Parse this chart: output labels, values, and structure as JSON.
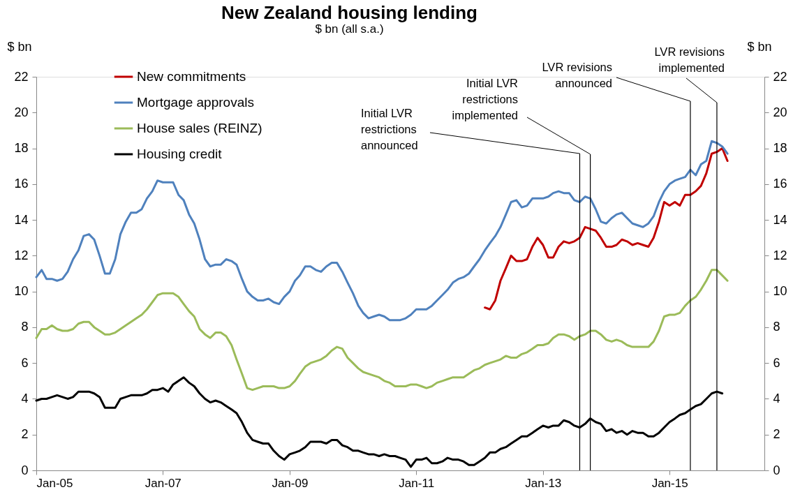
{
  "chart_data": {
    "type": "line",
    "title": "New Zealand housing lending",
    "subtitle": "$ bn (all s.a.)",
    "ylabel": "$ bn",
    "y2label": "$ bn",
    "x": [
      "2005-01",
      "2005-02",
      "2005-03",
      "2005-04",
      "2005-05",
      "2005-06",
      "2005-07",
      "2005-08",
      "2005-09",
      "2005-10",
      "2005-11",
      "2005-12",
      "2006-01",
      "2006-02",
      "2006-03",
      "2006-04",
      "2006-05",
      "2006-06",
      "2006-07",
      "2006-08",
      "2006-09",
      "2006-10",
      "2006-11",
      "2006-12",
      "2007-01",
      "2007-02",
      "2007-03",
      "2007-04",
      "2007-05",
      "2007-06",
      "2007-07",
      "2007-08",
      "2007-09",
      "2007-10",
      "2007-11",
      "2007-12",
      "2008-01",
      "2008-02",
      "2008-03",
      "2008-04",
      "2008-05",
      "2008-06",
      "2008-07",
      "2008-08",
      "2008-09",
      "2008-10",
      "2008-11",
      "2008-12",
      "2009-01",
      "2009-02",
      "2009-03",
      "2009-04",
      "2009-05",
      "2009-06",
      "2009-07",
      "2009-08",
      "2009-09",
      "2009-10",
      "2009-11",
      "2009-12",
      "2010-01",
      "2010-02",
      "2010-03",
      "2010-04",
      "2010-05",
      "2010-06",
      "2010-07",
      "2010-08",
      "2010-09",
      "2010-10",
      "2010-11",
      "2010-12",
      "2011-01",
      "2011-02",
      "2011-03",
      "2011-04",
      "2011-05",
      "2011-06",
      "2011-07",
      "2011-08",
      "2011-09",
      "2011-10",
      "2011-11",
      "2011-12",
      "2012-01",
      "2012-02",
      "2012-03",
      "2012-04",
      "2012-05",
      "2012-06",
      "2012-07",
      "2012-08",
      "2012-09",
      "2012-10",
      "2012-11",
      "2012-12",
      "2013-01",
      "2013-02",
      "2013-03",
      "2013-04",
      "2013-05",
      "2013-06",
      "2013-07",
      "2013-08",
      "2013-09",
      "2013-10",
      "2013-11",
      "2013-12",
      "2014-01",
      "2014-02",
      "2014-03",
      "2014-04",
      "2014-05",
      "2014-06",
      "2014-07",
      "2014-08",
      "2014-09",
      "2014-10",
      "2014-11",
      "2014-12",
      "2015-01",
      "2015-02",
      "2015-03",
      "2015-04",
      "2015-05",
      "2015-06",
      "2015-07",
      "2015-08",
      "2015-09",
      "2015-10",
      "2015-11",
      "2015-12"
    ],
    "series": [
      {
        "name": "New commitments",
        "color": "#c00000",
        "values": [
          null,
          null,
          null,
          null,
          null,
          null,
          null,
          null,
          null,
          null,
          null,
          null,
          null,
          null,
          null,
          null,
          null,
          null,
          null,
          null,
          null,
          null,
          null,
          null,
          null,
          null,
          null,
          null,
          null,
          null,
          null,
          null,
          null,
          null,
          null,
          null,
          null,
          null,
          null,
          null,
          null,
          null,
          null,
          null,
          null,
          null,
          null,
          null,
          null,
          null,
          null,
          null,
          null,
          null,
          null,
          null,
          null,
          null,
          null,
          null,
          null,
          null,
          null,
          null,
          null,
          null,
          null,
          null,
          null,
          null,
          null,
          null,
          null,
          null,
          null,
          null,
          null,
          null,
          null,
          null,
          null,
          null,
          null,
          null,
          null,
          9.1,
          9.0,
          9.5,
          10.6,
          11.3,
          12.0,
          11.7,
          11.7,
          11.8,
          12.5,
          13.0,
          12.6,
          11.9,
          11.9,
          12.5,
          12.8,
          12.7,
          12.8,
          13.0,
          13.6,
          13.5,
          13.4,
          13.0,
          12.5,
          12.5,
          12.6,
          12.9,
          12.8,
          12.6,
          12.7,
          12.6,
          12.5,
          13.0,
          13.9,
          15.0,
          14.8,
          15.0,
          14.8,
          15.4,
          15.4,
          15.6,
          15.9,
          16.6,
          17.7,
          17.8,
          18.0,
          17.3
        ]
      },
      {
        "name": "Mortgage approvals",
        "color": "#4f81bd",
        "values": [
          10.8,
          11.2,
          10.7,
          10.7,
          10.6,
          10.7,
          11.1,
          11.8,
          12.3,
          13.1,
          13.2,
          12.9,
          12.0,
          11.0,
          11.0,
          11.8,
          13.2,
          13.9,
          14.4,
          14.4,
          14.6,
          15.2,
          15.6,
          16.2,
          16.1,
          16.1,
          16.1,
          15.4,
          15.1,
          14.3,
          13.8,
          12.9,
          11.8,
          11.4,
          11.5,
          11.5,
          11.8,
          11.7,
          11.5,
          10.7,
          10.0,
          9.7,
          9.5,
          9.5,
          9.6,
          9.4,
          9.3,
          9.7,
          10.0,
          10.6,
          10.9,
          11.4,
          11.4,
          11.2,
          11.1,
          11.4,
          11.6,
          11.6,
          11.1,
          10.5,
          9.9,
          9.2,
          8.8,
          8.5,
          8.6,
          8.7,
          8.6,
          8.4,
          8.4,
          8.4,
          8.5,
          8.7,
          9.0,
          9.0,
          9.0,
          9.2,
          9.5,
          9.8,
          10.1,
          10.5,
          10.7,
          10.8,
          11.0,
          11.4,
          11.8,
          12.3,
          12.7,
          13.1,
          13.6,
          14.3,
          15.0,
          15.1,
          14.7,
          14.8,
          15.2,
          15.2,
          15.2,
          15.3,
          15.5,
          15.6,
          15.5,
          15.5,
          15.1,
          15.0,
          15.3,
          15.2,
          14.6,
          13.9,
          13.8,
          14.1,
          14.3,
          14.4,
          14.1,
          13.8,
          13.7,
          13.6,
          13.8,
          14.2,
          15.0,
          15.6,
          16.0,
          16.2,
          16.3,
          16.4,
          16.8,
          16.5,
          17.1,
          17.3,
          18.4,
          18.3,
          18.1,
          17.7
        ]
      },
      {
        "name": "House sales (REINZ)",
        "color": "#9bbb59",
        "values": [
          7.4,
          7.9,
          7.9,
          8.1,
          7.9,
          7.8,
          7.8,
          7.9,
          8.2,
          8.3,
          8.3,
          8.0,
          7.8,
          7.6,
          7.6,
          7.7,
          7.9,
          8.1,
          8.3,
          8.5,
          8.7,
          9.0,
          9.4,
          9.8,
          9.9,
          9.9,
          9.9,
          9.7,
          9.3,
          8.9,
          8.6,
          7.9,
          7.6,
          7.4,
          7.7,
          7.7,
          7.5,
          7.0,
          6.2,
          5.4,
          4.6,
          4.5,
          4.6,
          4.7,
          4.7,
          4.7,
          4.6,
          4.6,
          4.7,
          5.0,
          5.4,
          5.8,
          6.0,
          6.1,
          6.2,
          6.4,
          6.7,
          6.9,
          6.8,
          6.3,
          6.0,
          5.7,
          5.5,
          5.4,
          5.3,
          5.2,
          5.0,
          4.9,
          4.7,
          4.7,
          4.7,
          4.8,
          4.8,
          4.7,
          4.6,
          4.7,
          4.9,
          5.0,
          5.1,
          5.2,
          5.2,
          5.2,
          5.4,
          5.6,
          5.7,
          5.9,
          6.0,
          6.1,
          6.2,
          6.4,
          6.3,
          6.3,
          6.5,
          6.6,
          6.8,
          7.0,
          7.0,
          7.1,
          7.4,
          7.6,
          7.6,
          7.5,
          7.3,
          7.5,
          7.6,
          7.8,
          7.8,
          7.6,
          7.3,
          7.2,
          7.3,
          7.2,
          7.0,
          6.9,
          6.9,
          6.9,
          6.9,
          7.2,
          7.8,
          8.6,
          8.7,
          8.7,
          8.8,
          9.2,
          9.5,
          9.7,
          10.1,
          10.6,
          11.2,
          11.2,
          10.9,
          10.6
        ]
      },
      {
        "name": "Housing credit",
        "color": "#000000",
        "values": [
          3.9,
          4.0,
          4.0,
          4.1,
          4.2,
          4.1,
          4.0,
          4.1,
          4.4,
          4.4,
          4.4,
          4.3,
          4.1,
          3.5,
          3.5,
          3.5,
          4.0,
          4.1,
          4.2,
          4.2,
          4.2,
          4.3,
          4.5,
          4.5,
          4.6,
          4.4,
          4.8,
          5.0,
          5.2,
          4.9,
          4.7,
          4.3,
          4.0,
          3.8,
          3.9,
          3.8,
          3.6,
          3.4,
          3.2,
          2.7,
          2.1,
          1.7,
          1.6,
          1.5,
          1.5,
          1.1,
          0.8,
          0.6,
          0.9,
          1.0,
          1.1,
          1.3,
          1.6,
          1.6,
          1.6,
          1.5,
          1.7,
          1.7,
          1.4,
          1.3,
          1.1,
          1.1,
          1.0,
          0.9,
          0.9,
          0.8,
          0.9,
          0.8,
          0.8,
          0.7,
          0.6,
          0.2,
          0.6,
          0.6,
          0.7,
          0.4,
          0.4,
          0.5,
          0.7,
          0.6,
          0.6,
          0.5,
          0.3,
          0.3,
          0.5,
          0.7,
          1.0,
          1.0,
          1.2,
          1.3,
          1.5,
          1.7,
          1.9,
          1.9,
          2.1,
          2.3,
          2.5,
          2.4,
          2.5,
          2.5,
          2.8,
          2.7,
          2.5,
          2.4,
          2.6,
          2.9,
          2.7,
          2.6,
          2.2,
          2.3,
          2.1,
          2.2,
          2.0,
          2.2,
          2.1,
          2.1,
          1.9,
          1.9,
          2.1,
          2.4,
          2.7,
          2.9,
          3.1,
          3.2,
          3.4,
          3.6,
          3.7,
          4.0,
          4.3,
          4.4,
          4.3,
          null
        ]
      }
    ],
    "xlim": [
      "2005-01",
      "2016-07"
    ],
    "xticks": [
      {
        "value": "2005-01",
        "label": "Jan-05"
      },
      {
        "value": "2007-01",
        "label": "Jan-07"
      },
      {
        "value": "2009-01",
        "label": "Jan-09"
      },
      {
        "value": "2011-01",
        "label": "Jan-11"
      },
      {
        "value": "2013-01",
        "label": "Jan-13"
      },
      {
        "value": "2015-01",
        "label": "Jan-15"
      }
    ],
    "ylim": [
      0,
      22
    ],
    "yticks": [
      0,
      2,
      4,
      6,
      8,
      10,
      12,
      14,
      16,
      18,
      20,
      22
    ],
    "y2lim": [
      0,
      22
    ],
    "y2ticks": [
      0,
      2,
      4,
      6,
      8,
      10,
      12,
      14,
      16,
      18,
      20,
      22
    ],
    "ref_lines": [
      {
        "axis": "x",
        "value": "2013-08",
        "label": "Initial LVR\nrestrictions\nannounced",
        "color": "#000000"
      },
      {
        "axis": "x",
        "value": "2013-10",
        "label": "Initial LVR\nrestrictions\nimplemented",
        "color": "#000000"
      },
      {
        "axis": "x",
        "value": "2015-05",
        "label": "LVR revisions\nannounced",
        "color": "#000000"
      },
      {
        "axis": "x",
        "value": "2015-10",
        "label": "LVR revisions\nimplemented",
        "color": "#000000"
      }
    ],
    "grid": false,
    "legend": "top left"
  }
}
